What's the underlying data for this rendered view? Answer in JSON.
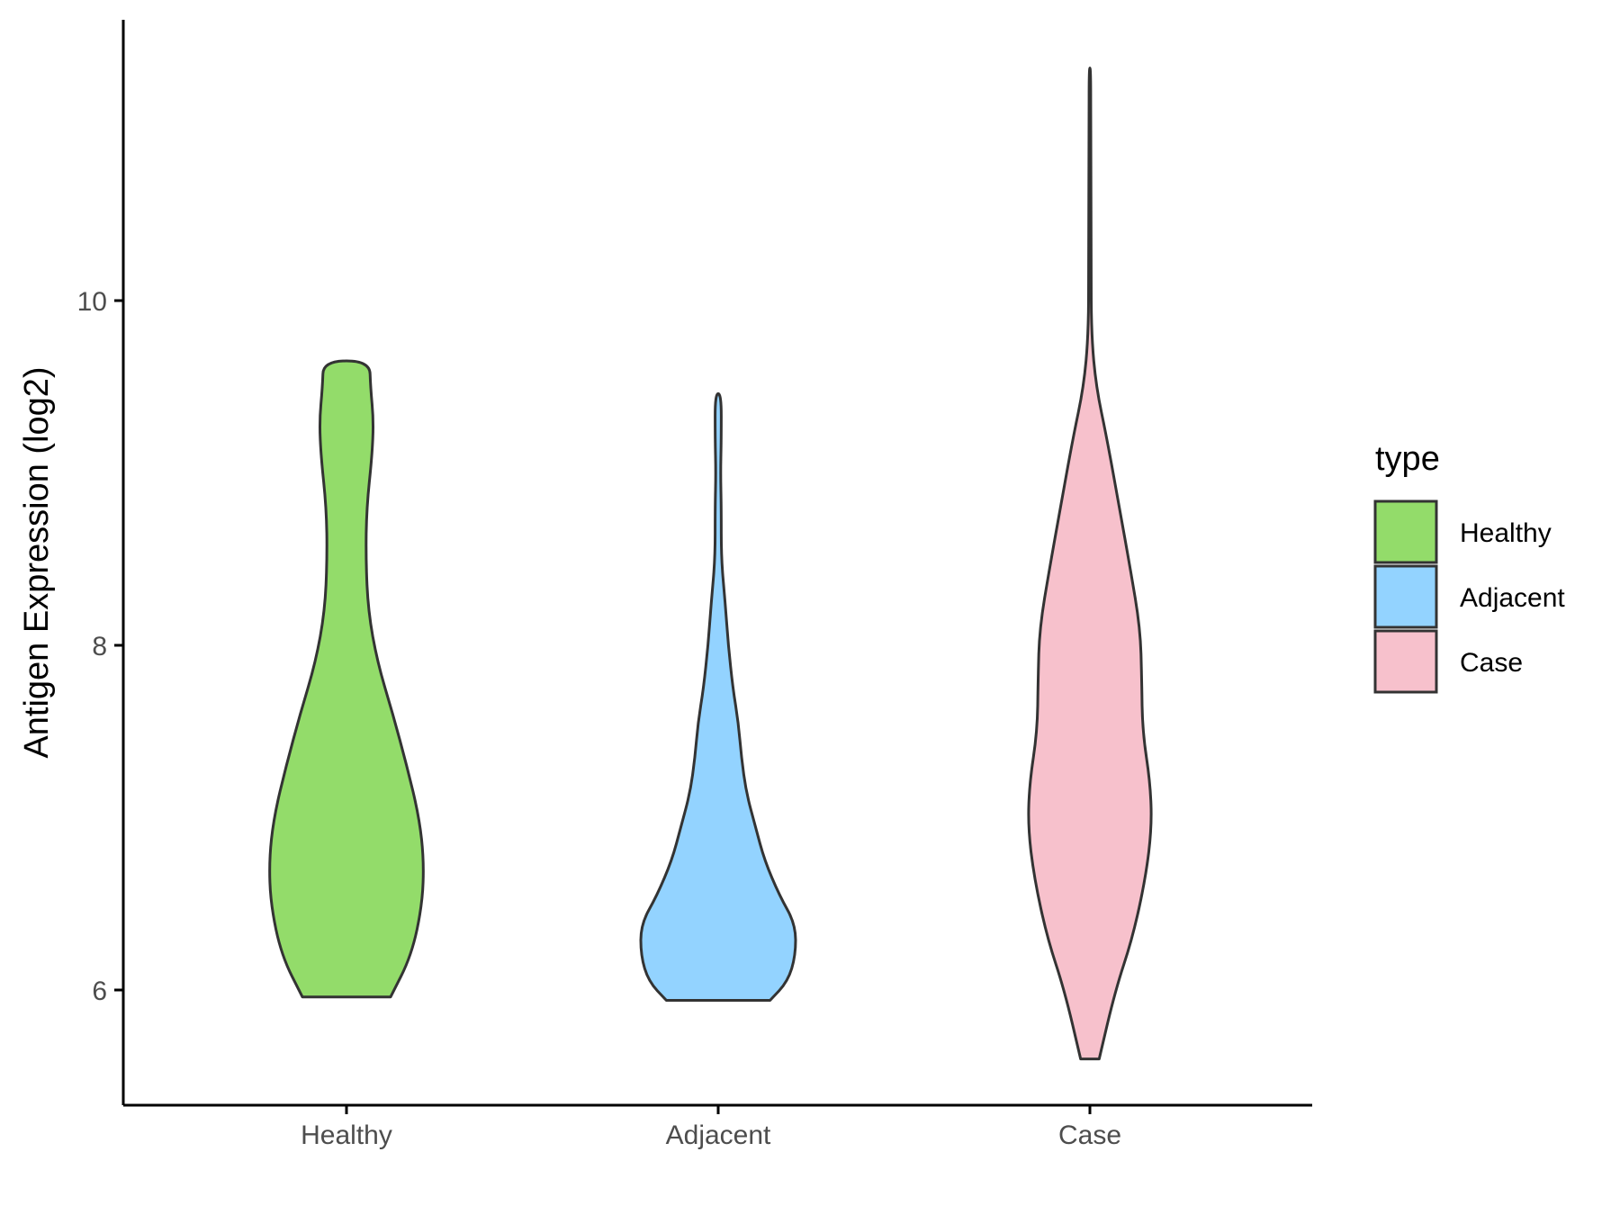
{
  "chart_data": {
    "type": "violin",
    "categories": [
      "Healthy",
      "Adjacent",
      "Case"
    ],
    "ylabel": "Antigen Expression (log2)",
    "xlabel": "",
    "ylim": [
      5.35,
      11.6
    ],
    "yticks": [
      "6",
      "8",
      "10"
    ],
    "grid": false,
    "legend": {
      "title": "type",
      "position": "right",
      "entries": [
        "Healthy",
        "Adjacent",
        "Case"
      ]
    },
    "colors": {
      "Healthy": "#93dc6a",
      "Adjacent": "#93d3ff",
      "Case": "#f7c1cc",
      "outline": "#333333"
    },
    "series": [
      {
        "name": "Healthy",
        "min": 5.96,
        "max": 9.65,
        "density": [
          [
            5.96,
            0.57
          ],
          [
            6.2,
            0.84
          ],
          [
            6.5,
            0.98
          ],
          [
            6.75,
            1.0
          ],
          [
            7.0,
            0.94
          ],
          [
            7.3,
            0.78
          ],
          [
            7.6,
            0.6
          ],
          [
            7.9,
            0.4
          ],
          [
            8.2,
            0.28
          ],
          [
            8.5,
            0.25
          ],
          [
            8.8,
            0.26
          ],
          [
            9.1,
            0.33
          ],
          [
            9.3,
            0.35
          ],
          [
            9.5,
            0.31
          ],
          [
            9.65,
            0.3
          ]
        ]
      },
      {
        "name": "Adjacent",
        "min": 5.94,
        "max": 9.46,
        "density": [
          [
            5.94,
            0.67
          ],
          [
            6.05,
            0.9
          ],
          [
            6.2,
            1.0
          ],
          [
            6.38,
            1.0
          ],
          [
            6.55,
            0.79
          ],
          [
            6.75,
            0.6
          ],
          [
            6.95,
            0.48
          ],
          [
            7.15,
            0.36
          ],
          [
            7.35,
            0.3
          ],
          [
            7.55,
            0.26
          ],
          [
            7.75,
            0.19
          ],
          [
            8.0,
            0.13
          ],
          [
            8.25,
            0.09
          ],
          [
            8.5,
            0.04
          ],
          [
            8.8,
            0.04
          ],
          [
            9.0,
            0.03
          ],
          [
            9.2,
            0.04
          ],
          [
            9.46,
            0.04
          ]
        ]
      },
      {
        "name": "Case",
        "min": 5.6,
        "max": 11.35,
        "density": [
          [
            5.6,
            0.12
          ],
          [
            6.0,
            0.33
          ],
          [
            6.3,
            0.55
          ],
          [
            6.65,
            0.72
          ],
          [
            6.95,
            0.8
          ],
          [
            7.2,
            0.78
          ],
          [
            7.5,
            0.68
          ],
          [
            7.8,
            0.67
          ],
          [
            8.1,
            0.65
          ],
          [
            8.45,
            0.52
          ],
          [
            8.8,
            0.38
          ],
          [
            9.2,
            0.22
          ],
          [
            9.5,
            0.08
          ],
          [
            9.8,
            0.02
          ],
          [
            10.2,
            0.015
          ],
          [
            11.0,
            0.012
          ],
          [
            11.35,
            0.01
          ]
        ]
      }
    ]
  }
}
